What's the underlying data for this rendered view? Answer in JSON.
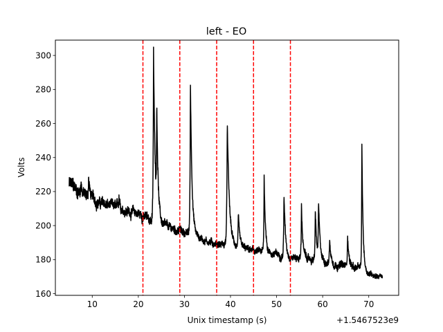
{
  "chart_data": {
    "type": "line",
    "title": "left - EO",
    "xlabel": "Unix timestamp (s)",
    "ylabel": "Volts",
    "x_offset_label": "+1.5467523e9",
    "xlim": [
      2,
      76.5
    ],
    "ylim": [
      159,
      309
    ],
    "xticks": [
      10,
      20,
      30,
      40,
      50,
      60,
      70
    ],
    "yticks": [
      160,
      180,
      200,
      220,
      240,
      260,
      280,
      300
    ],
    "grid": false,
    "legend": "none",
    "line_color": "#000000",
    "marker_color": "#ff0000",
    "markers_x": [
      21,
      29,
      37,
      45,
      53
    ],
    "series": [
      {
        "baseline": [
          [
            5,
            224
          ],
          [
            8,
            218
          ],
          [
            12,
            213
          ],
          [
            16,
            210
          ],
          [
            20,
            207
          ],
          [
            23,
            203
          ],
          [
            26,
            199
          ],
          [
            29,
            197
          ],
          [
            32,
            194
          ],
          [
            36,
            190
          ],
          [
            40,
            188
          ],
          [
            45,
            185
          ],
          [
            50,
            183
          ],
          [
            55,
            181
          ],
          [
            60,
            179
          ],
          [
            65,
            176
          ],
          [
            68,
            175
          ],
          [
            70,
            172
          ],
          [
            73,
            170
          ]
        ],
        "noise": [
          [
            5,
            8
          ],
          [
            9,
            6
          ],
          [
            14,
            5
          ],
          [
            22,
            5
          ],
          [
            30,
            4
          ],
          [
            40,
            3.5
          ],
          [
            55,
            3.5
          ],
          [
            66,
            4
          ],
          [
            70,
            3
          ],
          [
            73,
            2.5
          ]
        ],
        "peaks": [
          {
            "x": 23.3,
            "y": 302,
            "w": 0.35
          },
          {
            "x": 24.0,
            "y": 261,
            "w": 0.3
          },
          {
            "x": 31.3,
            "y": 286,
            "w": 0.35
          },
          {
            "x": 39.3,
            "y": 261,
            "w": 0.45
          },
          {
            "x": 41.7,
            "y": 205,
            "w": 0.3
          },
          {
            "x": 47.3,
            "y": 229,
            "w": 0.3
          },
          {
            "x": 51.6,
            "y": 221,
            "w": 0.3
          },
          {
            "x": 55.4,
            "y": 212,
            "w": 0.3
          },
          {
            "x": 58.4,
            "y": 209,
            "w": 0.3
          },
          {
            "x": 59.1,
            "y": 212,
            "w": 0.3
          },
          {
            "x": 61.5,
            "y": 192,
            "w": 0.3
          },
          {
            "x": 65.4,
            "y": 196,
            "w": 0.3
          },
          {
            "x": 68.5,
            "y": 250,
            "w": 0.25
          },
          {
            "x": 7.5,
            "y": 226,
            "w": 0.4
          },
          {
            "x": 9.2,
            "y": 229,
            "w": 0.3
          },
          {
            "x": 15.8,
            "y": 218,
            "w": 0.3
          }
        ]
      }
    ]
  }
}
